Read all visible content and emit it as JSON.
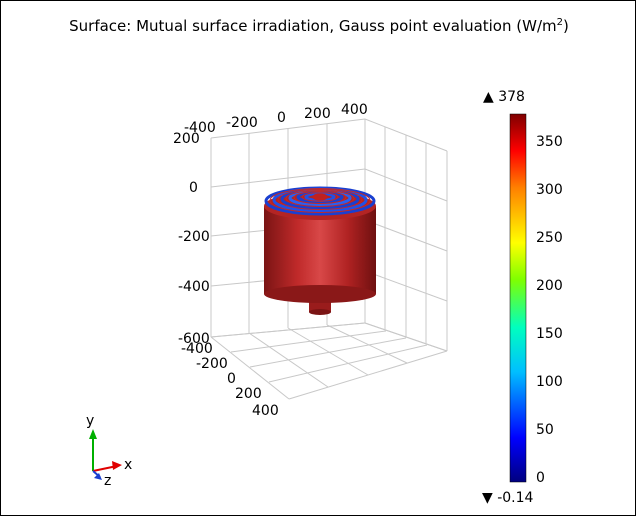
{
  "title": {
    "text": "Surface: Mutual surface irradiation, Gauss point evaluation (W/m",
    "unit_exponent": "2",
    "text_end": ")"
  },
  "axes": {
    "x_ticks": [
      "-400",
      "-200",
      "0",
      "200",
      "400"
    ],
    "y_ticks": [
      "400",
      "200",
      "0",
      "-200",
      "-400"
    ],
    "z_ticks": [
      "200",
      "0",
      "-200",
      "-400",
      "-600"
    ]
  },
  "triad": {
    "x": "x",
    "y": "y",
    "z": "z"
  },
  "colorbar": {
    "max_label": "▲ 378",
    "min_label": "▼ -0.14",
    "max": 378,
    "min": -0.14,
    "ticks": [
      "350",
      "300",
      "250",
      "200",
      "150",
      "100",
      "50",
      "0"
    ],
    "colormap": [
      "#00007f",
      "#0000ff",
      "#00bfff",
      "#00ffbf",
      "#7fff00",
      "#ffff00",
      "#ff8000",
      "#ff0000",
      "#7f0000"
    ]
  }
}
